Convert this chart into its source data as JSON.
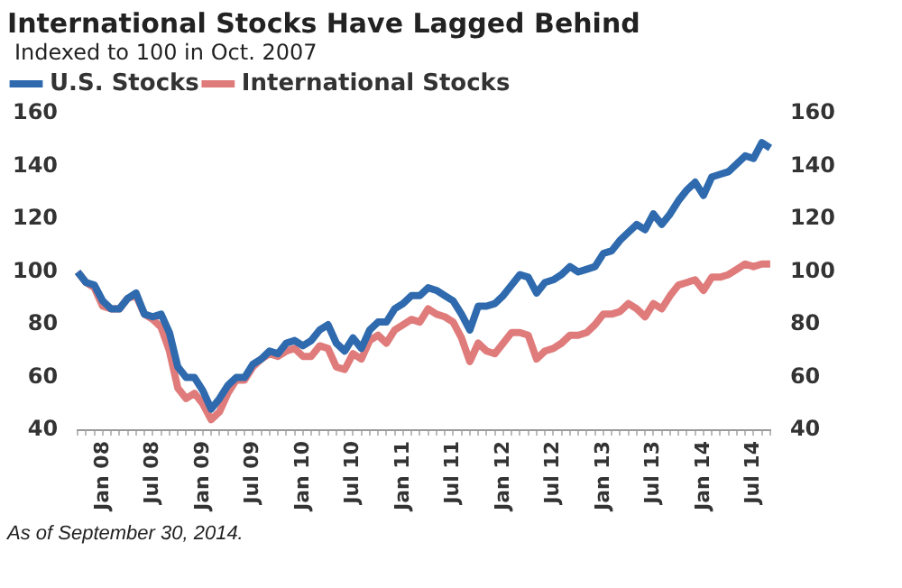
{
  "chart_data": {
    "type": "line",
    "title": "International Stocks Have Lagged Behind",
    "subtitle": "Indexed to 100 in Oct. 2007",
    "categories": [
      null,
      null,
      null,
      "Jan 08",
      null,
      null,
      null,
      null,
      null,
      "Jul 08",
      null,
      null,
      null,
      null,
      null,
      "Jan 09",
      null,
      null,
      null,
      null,
      null,
      "Jul 09",
      null,
      null,
      null,
      null,
      null,
      "Jan 10",
      null,
      null,
      null,
      null,
      null,
      "Jul 10",
      null,
      null,
      null,
      null,
      null,
      "Jan 11",
      null,
      null,
      null,
      null,
      null,
      "Jul 11",
      null,
      null,
      null,
      null,
      null,
      "Jan 12",
      null,
      null,
      null,
      null,
      null,
      "Jul 12",
      null,
      null,
      null,
      null,
      null,
      "Jan 13",
      null,
      null,
      null,
      null,
      null,
      "Jul 13",
      null,
      null,
      null,
      null,
      null,
      "Jan 14",
      null,
      null,
      null,
      null,
      null,
      "Jul 14",
      null,
      null
    ],
    "series": [
      {
        "name": "U.S. Stocks",
        "color": "#2e6aad",
        "values": [
          100,
          96,
          95,
          89,
          86,
          86,
          90,
          92,
          84,
          83,
          84,
          77,
          64,
          60,
          60,
          55,
          48,
          52,
          57,
          60,
          60,
          65,
          67,
          70,
          69,
          73,
          74,
          72,
          74,
          78,
          80,
          73,
          70,
          75,
          71,
          78,
          81,
          81,
          86,
          88,
          91,
          91,
          94,
          93,
          91,
          89,
          84,
          78,
          87,
          87,
          88,
          91,
          95,
          99,
          98,
          92,
          96,
          97,
          99,
          102,
          100,
          101,
          102,
          107,
          108,
          112,
          115,
          118,
          116,
          122,
          118,
          122,
          127,
          131,
          134,
          129,
          136,
          137,
          138,
          141,
          144,
          143,
          149,
          147
        ]
      },
      {
        "name": "International Stocks",
        "color": "#e07b7b",
        "values": [
          100,
          96,
          94,
          87,
          86,
          86,
          90,
          91,
          84,
          82,
          79,
          70,
          56,
          52,
          54,
          50,
          44,
          47,
          54,
          59,
          59,
          64,
          67,
          69,
          68,
          70,
          71,
          68,
          68,
          72,
          71,
          64,
          63,
          69,
          67,
          74,
          76,
          73,
          78,
          80,
          82,
          81,
          86,
          84,
          83,
          81,
          75,
          66,
          73,
          70,
          69,
          73,
          77,
          77,
          76,
          67,
          70,
          71,
          73,
          76,
          76,
          77,
          80,
          84,
          84,
          85,
          88,
          86,
          83,
          88,
          86,
          91,
          95,
          96,
          97,
          93,
          98,
          98,
          99,
          101,
          103,
          102,
          103,
          103
        ]
      }
    ],
    "ylim": [
      40,
      160
    ],
    "yticks": [
      40,
      60,
      80,
      100,
      120,
      140,
      160
    ],
    "y2lim": [
      40,
      160
    ],
    "y2ticks": [
      40,
      60,
      80,
      100,
      120,
      140,
      160
    ],
    "grid": false,
    "legend": "top left",
    "marker": "none",
    "line_style": "solid",
    "annotations": [
      "As of September 30, 2014."
    ]
  }
}
